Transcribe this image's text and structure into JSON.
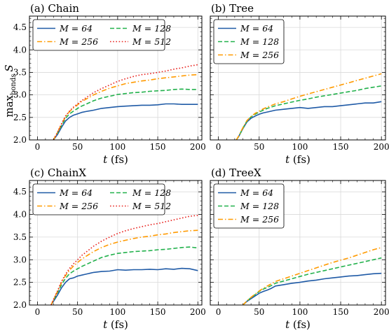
{
  "figure": {
    "ylabel_main": "max",
    "ylabel_sub": "bonds",
    "ylabel_var": "S"
  },
  "chart_data": [
    {
      "type": "line",
      "title": "(a) Chain",
      "xlabel": "t (fs)",
      "ylabel": "max_bonds S",
      "xlim": [
        -10,
        205
      ],
      "ylim": [
        2.0,
        4.75
      ],
      "xticks": [
        0,
        50,
        100,
        150,
        200
      ],
      "yticks": [
        2.0,
        2.5,
        3.0,
        3.5,
        4.0,
        4.5
      ],
      "grid": true,
      "show_ylabel": true,
      "show_yticklabels": true,
      "legend": {
        "placement": "top-left",
        "columns": 2
      },
      "series": [
        {
          "name": "M = 64",
          "color": "#1f5aa6",
          "dash": "solid",
          "x": [
            20,
            25,
            30,
            35,
            40,
            45,
            50,
            55,
            60,
            70,
            80,
            90,
            100,
            110,
            120,
            130,
            140,
            150,
            160,
            170,
            180,
            190,
            200
          ],
          "y": [
            2.0,
            2.12,
            2.28,
            2.42,
            2.5,
            2.55,
            2.58,
            2.61,
            2.63,
            2.66,
            2.7,
            2.72,
            2.74,
            2.75,
            2.76,
            2.77,
            2.77,
            2.78,
            2.8,
            2.8,
            2.79,
            2.79,
            2.79
          ]
        },
        {
          "name": "M = 128",
          "color": "#22b14c",
          "dash": "dashed",
          "x": [
            20,
            25,
            30,
            35,
            40,
            45,
            50,
            55,
            60,
            70,
            80,
            90,
            100,
            110,
            120,
            130,
            140,
            150,
            160,
            170,
            180,
            190,
            200
          ],
          "y": [
            2.0,
            2.15,
            2.32,
            2.48,
            2.58,
            2.64,
            2.7,
            2.75,
            2.79,
            2.87,
            2.93,
            2.97,
            3.01,
            3.03,
            3.05,
            3.06,
            3.08,
            3.09,
            3.1,
            3.12,
            3.13,
            3.12,
            3.12
          ]
        },
        {
          "name": "M = 256",
          "color": "#ff9a00",
          "dash": "dashdot",
          "x": [
            20,
            25,
            30,
            35,
            40,
            45,
            50,
            55,
            60,
            70,
            80,
            90,
            100,
            110,
            120,
            130,
            140,
            150,
            160,
            170,
            180,
            190,
            200
          ],
          "y": [
            2.0,
            2.17,
            2.35,
            2.52,
            2.63,
            2.71,
            2.78,
            2.85,
            2.9,
            3.0,
            3.08,
            3.15,
            3.2,
            3.25,
            3.28,
            3.31,
            3.33,
            3.36,
            3.38,
            3.4,
            3.42,
            3.44,
            3.45
          ]
        },
        {
          "name": "M = 512",
          "color": "#e8231f",
          "dash": "dotted",
          "x": [
            20,
            25,
            30,
            35,
            40,
            45,
            50,
            55,
            60,
            70,
            80,
            90,
            100,
            110,
            120,
            130,
            140,
            150,
            160,
            170,
            180,
            190,
            200
          ],
          "y": [
            2.0,
            2.17,
            2.36,
            2.53,
            2.64,
            2.73,
            2.8,
            2.87,
            2.93,
            3.05,
            3.14,
            3.22,
            3.3,
            3.36,
            3.41,
            3.45,
            3.47,
            3.5,
            3.53,
            3.57,
            3.6,
            3.64,
            3.67
          ]
        }
      ]
    },
    {
      "type": "line",
      "title": "(b) Tree",
      "xlabel": "t (fs)",
      "ylabel": "",
      "xlim": [
        -10,
        205
      ],
      "ylim": [
        2.0,
        4.75
      ],
      "xticks": [
        0,
        50,
        100,
        150,
        200
      ],
      "yticks": [
        2.0,
        2.5,
        3.0,
        3.5,
        4.0,
        4.5
      ],
      "grid": true,
      "show_ylabel": false,
      "show_yticklabels": false,
      "legend": {
        "placement": "top-left",
        "columns": 1
      },
      "series": [
        {
          "name": "M = 64",
          "color": "#1f5aa6",
          "dash": "solid",
          "x": [
            22,
            25,
            30,
            35,
            40,
            45,
            50,
            55,
            60,
            70,
            80,
            90,
            100,
            110,
            120,
            130,
            140,
            150,
            160,
            170,
            180,
            190,
            200
          ],
          "y": [
            2.0,
            2.08,
            2.25,
            2.4,
            2.48,
            2.53,
            2.57,
            2.6,
            2.62,
            2.66,
            2.68,
            2.7,
            2.72,
            2.7,
            2.72,
            2.74,
            2.74,
            2.76,
            2.78,
            2.8,
            2.82,
            2.82,
            2.85
          ]
        },
        {
          "name": "M = 128",
          "color": "#22b14c",
          "dash": "dashed",
          "x": [
            22,
            25,
            30,
            35,
            40,
            45,
            50,
            55,
            60,
            70,
            80,
            90,
            100,
            110,
            120,
            130,
            140,
            150,
            160,
            170,
            180,
            190,
            200
          ],
          "y": [
            2.0,
            2.08,
            2.26,
            2.42,
            2.51,
            2.57,
            2.62,
            2.66,
            2.7,
            2.76,
            2.8,
            2.84,
            2.88,
            2.91,
            2.95,
            2.98,
            3.01,
            3.04,
            3.07,
            3.1,
            3.14,
            3.17,
            3.2
          ]
        },
        {
          "name": "M = 256",
          "color": "#ff9a00",
          "dash": "dashdot",
          "x": [
            22,
            25,
            30,
            35,
            40,
            45,
            50,
            55,
            60,
            70,
            80,
            90,
            100,
            110,
            120,
            130,
            140,
            150,
            160,
            170,
            180,
            190,
            200
          ],
          "y": [
            2.0,
            2.09,
            2.27,
            2.43,
            2.52,
            2.59,
            2.64,
            2.69,
            2.73,
            2.8,
            2.85,
            2.91,
            2.97,
            3.02,
            3.07,
            3.12,
            3.17,
            3.22,
            3.27,
            3.32,
            3.37,
            3.42,
            3.47
          ]
        }
      ]
    },
    {
      "type": "line",
      "title": "(c) ChainX",
      "xlabel": "t (fs)",
      "ylabel": "",
      "xlim": [
        -10,
        205
      ],
      "ylim": [
        2.0,
        4.75
      ],
      "xticks": [
        0,
        50,
        100,
        150,
        200
      ],
      "yticks": [
        2.0,
        2.5,
        3.0,
        3.5,
        4.0,
        4.5
      ],
      "grid": true,
      "show_ylabel": false,
      "show_yticklabels": true,
      "legend": {
        "placement": "top-left",
        "columns": 2
      },
      "series": [
        {
          "name": "M = 64",
          "color": "#1f5aa6",
          "dash": "solid",
          "x": [
            17,
            20,
            25,
            30,
            35,
            40,
            45,
            50,
            55,
            60,
            70,
            80,
            90,
            100,
            110,
            120,
            130,
            140,
            150,
            160,
            170,
            180,
            190,
            200
          ],
          "y": [
            2.0,
            2.08,
            2.22,
            2.38,
            2.5,
            2.58,
            2.6,
            2.64,
            2.66,
            2.68,
            2.72,
            2.74,
            2.75,
            2.78,
            2.77,
            2.78,
            2.78,
            2.79,
            2.78,
            2.8,
            2.79,
            2.81,
            2.8,
            2.76
          ]
        },
        {
          "name": "M = 128",
          "color": "#22b14c",
          "dash": "dashed",
          "x": [
            17,
            20,
            25,
            30,
            35,
            40,
            45,
            50,
            55,
            60,
            70,
            80,
            90,
            100,
            110,
            120,
            130,
            140,
            150,
            160,
            170,
            180,
            190,
            200
          ],
          "y": [
            2.0,
            2.1,
            2.27,
            2.45,
            2.59,
            2.69,
            2.75,
            2.8,
            2.85,
            2.89,
            2.97,
            3.05,
            3.1,
            3.14,
            3.16,
            3.18,
            3.19,
            3.2,
            3.22,
            3.23,
            3.25,
            3.27,
            3.28,
            3.26
          ]
        },
        {
          "name": "M = 256",
          "color": "#ff9a00",
          "dash": "dashdot",
          "x": [
            17,
            20,
            25,
            30,
            35,
            40,
            45,
            50,
            55,
            60,
            70,
            80,
            90,
            100,
            110,
            120,
            130,
            140,
            150,
            160,
            170,
            180,
            190,
            200
          ],
          "y": [
            2.0,
            2.12,
            2.3,
            2.5,
            2.65,
            2.77,
            2.86,
            2.94,
            3.01,
            3.07,
            3.18,
            3.27,
            3.34,
            3.39,
            3.43,
            3.47,
            3.5,
            3.52,
            3.55,
            3.57,
            3.6,
            3.62,
            3.64,
            3.65
          ]
        },
        {
          "name": "M = 512",
          "color": "#e8231f",
          "dash": "dotted",
          "x": [
            17,
            20,
            25,
            30,
            35,
            40,
            45,
            50,
            55,
            60,
            70,
            80,
            90,
            100,
            110,
            120,
            130,
            140,
            150,
            160,
            170,
            180,
            190,
            200
          ],
          "y": [
            2.0,
            2.12,
            2.31,
            2.52,
            2.68,
            2.81,
            2.91,
            3.0,
            3.09,
            3.16,
            3.3,
            3.41,
            3.5,
            3.58,
            3.64,
            3.69,
            3.73,
            3.77,
            3.8,
            3.84,
            3.88,
            3.92,
            3.96,
            3.98
          ]
        }
      ]
    },
    {
      "type": "line",
      "title": "(d) TreeX",
      "xlabel": "t (fs)",
      "ylabel": "",
      "xlim": [
        -10,
        205
      ],
      "ylim": [
        2.0,
        4.75
      ],
      "xticks": [
        0,
        50,
        100,
        150,
        200
      ],
      "yticks": [
        2.0,
        2.5,
        3.0,
        3.5,
        4.0,
        4.5
      ],
      "grid": true,
      "show_ylabel": false,
      "show_yticklabels": false,
      "legend": {
        "placement": "top-left",
        "columns": 1
      },
      "series": [
        {
          "name": "M = 64",
          "color": "#1f5aa6",
          "dash": "solid",
          "x": [
            30,
            35,
            40,
            45,
            50,
            55,
            60,
            65,
            70,
            80,
            90,
            100,
            110,
            120,
            130,
            140,
            150,
            160,
            170,
            180,
            190,
            200
          ],
          "y": [
            2.0,
            2.08,
            2.14,
            2.2,
            2.26,
            2.3,
            2.33,
            2.37,
            2.42,
            2.45,
            2.48,
            2.5,
            2.53,
            2.55,
            2.58,
            2.6,
            2.62,
            2.64,
            2.65,
            2.67,
            2.69,
            2.7
          ]
        },
        {
          "name": "M = 128",
          "color": "#22b14c",
          "dash": "dashed",
          "x": [
            30,
            35,
            40,
            45,
            50,
            55,
            60,
            65,
            70,
            80,
            90,
            100,
            110,
            120,
            130,
            140,
            150,
            160,
            170,
            180,
            190,
            200
          ],
          "y": [
            2.0,
            2.09,
            2.16,
            2.23,
            2.3,
            2.35,
            2.39,
            2.43,
            2.48,
            2.53,
            2.58,
            2.63,
            2.68,
            2.72,
            2.76,
            2.8,
            2.84,
            2.88,
            2.92,
            2.96,
            3.0,
            3.04
          ]
        },
        {
          "name": "M = 256",
          "color": "#ff9a00",
          "dash": "dashdot",
          "x": [
            30,
            35,
            40,
            45,
            50,
            55,
            60,
            65,
            70,
            80,
            90,
            100,
            110,
            120,
            130,
            140,
            150,
            160,
            170,
            180,
            190,
            200
          ],
          "y": [
            2.0,
            2.09,
            2.17,
            2.24,
            2.31,
            2.37,
            2.42,
            2.47,
            2.52,
            2.58,
            2.64,
            2.7,
            2.76,
            2.82,
            2.88,
            2.94,
            2.99,
            3.04,
            3.1,
            3.16,
            3.22,
            3.27
          ]
        }
      ]
    }
  ]
}
